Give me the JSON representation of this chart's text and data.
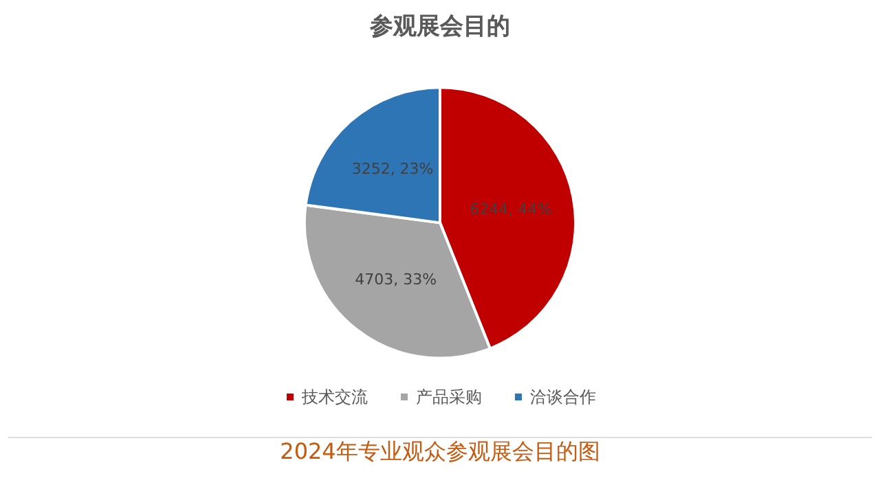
{
  "chart_data": {
    "type": "pie",
    "title": "参观展会目的",
    "categories": [
      "技术交流",
      "产品采购",
      "洽谈合作"
    ],
    "values": [
      6244,
      4703,
      3252
    ],
    "colors": [
      "#c00000",
      "#a5a5a5",
      "#2e75b6"
    ],
    "value_labels": [
      "6244, 44%",
      "4703, 33%",
      "3252, 23%"
    ],
    "legend": "bottom",
    "annotations": [
      "2024年专业观众参观展会目的图"
    ]
  }
}
